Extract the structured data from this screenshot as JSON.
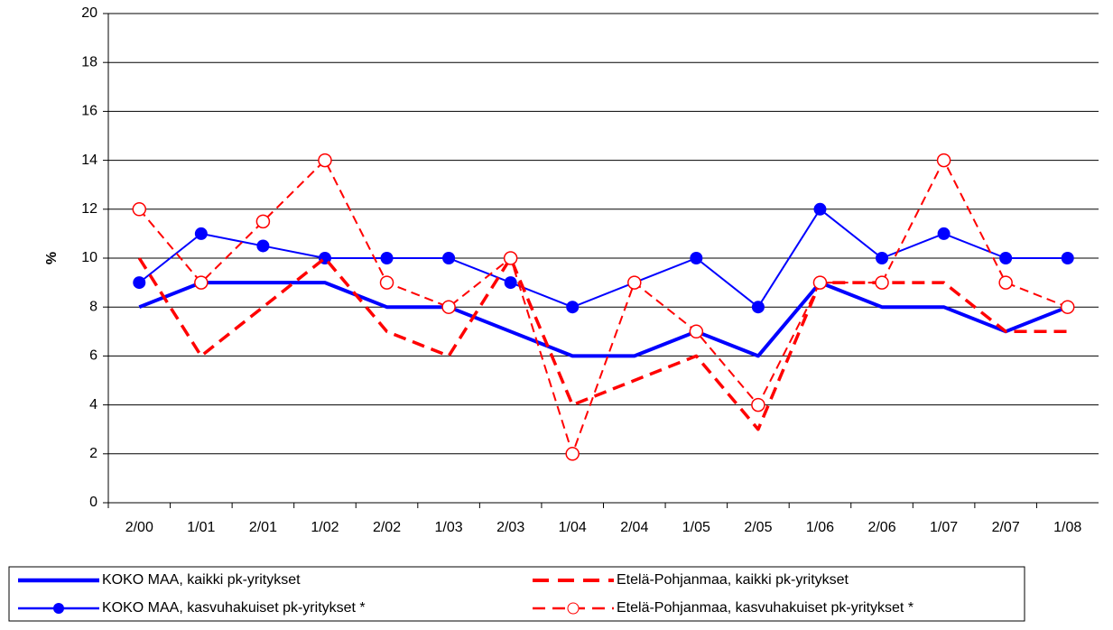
{
  "chart_data": {
    "type": "line",
    "y_label": "%",
    "categories": [
      "2/00",
      "1/01",
      "2/01",
      "1/02",
      "2/02",
      "1/03",
      "2/03",
      "1/04",
      "2/04",
      "1/05",
      "2/05",
      "1/06",
      "2/06",
      "1/07",
      "2/07",
      "1/08"
    ],
    "ylim": [
      0,
      20
    ],
    "yticks": [
      0,
      2,
      4,
      6,
      8,
      10,
      12,
      14,
      16,
      18,
      20
    ],
    "grid": true,
    "legend": "bottom",
    "series": [
      {
        "name": "KOKO MAA, kaikki pk-yritykset",
        "color": "#0000ff",
        "style": "solid-thick",
        "values": [
          8,
          9,
          9,
          9,
          8,
          8,
          7,
          6,
          6,
          7,
          6,
          9,
          8,
          8,
          7,
          8
        ]
      },
      {
        "name": "KOKO MAA, kasvuhakuiset pk-yritykset *",
        "color": "#0000ff",
        "style": "solid-dot",
        "values": [
          9,
          11,
          10.5,
          10,
          10,
          10,
          9,
          8,
          9,
          10,
          8,
          12,
          10,
          11,
          10,
          10
        ]
      },
      {
        "name": "Etelä-Pohjanmaa, kaikki pk-yritykset",
        "color": "#ff0000",
        "style": "dashed",
        "values": [
          10,
          6,
          8,
          10,
          7,
          6,
          10,
          4,
          5,
          6,
          3,
          9,
          9,
          9,
          7,
          7
        ]
      },
      {
        "name": "Etelä-Pohjanmaa, kasvuhakuiset pk-yritykset *",
        "color": "#ff0000",
        "style": "dashed-circle",
        "values": [
          12,
          9,
          11.5,
          14,
          9,
          8,
          10,
          2,
          9,
          7,
          4,
          9,
          9,
          14,
          9,
          8
        ]
      }
    ]
  }
}
